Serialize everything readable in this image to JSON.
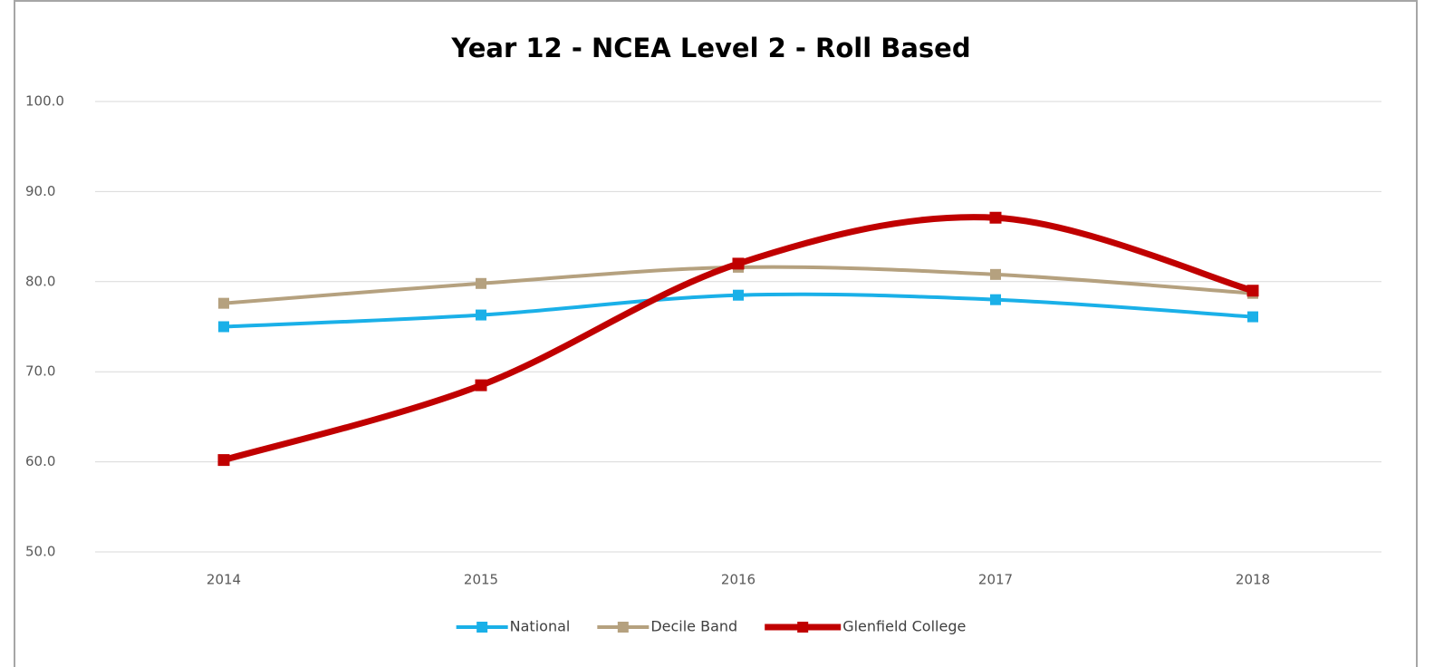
{
  "chart_data": {
    "type": "line",
    "title": "Year 12 - NCEA Level 2 - Roll Based",
    "categories": [
      "2014",
      "2015",
      "2016",
      "2017",
      "2018"
    ],
    "series": [
      {
        "name": "National",
        "color": "#1ab0e8",
        "values": [
          75.0,
          76.3,
          78.5,
          78.0,
          76.1
        ]
      },
      {
        "name": "Decile Band",
        "color": "#b5a17f",
        "values": [
          77.6,
          79.8,
          81.6,
          80.8,
          78.7
        ]
      },
      {
        "name": "Glenfield College",
        "color": "#c00000",
        "values": [
          60.2,
          68.5,
          82.0,
          87.1,
          79.0
        ]
      }
    ],
    "ylim": [
      50,
      100
    ],
    "yticks": [
      {
        "value": 50,
        "label": "50.0"
      },
      {
        "value": 60,
        "label": "60.0"
      },
      {
        "value": 70,
        "label": "70.0"
      },
      {
        "value": 80,
        "label": "80.0"
      },
      {
        "value": 90,
        "label": "90.0"
      },
      {
        "value": 100,
        "label": "100.0"
      }
    ],
    "grid": true,
    "smooth": true,
    "legend": "bottom"
  }
}
